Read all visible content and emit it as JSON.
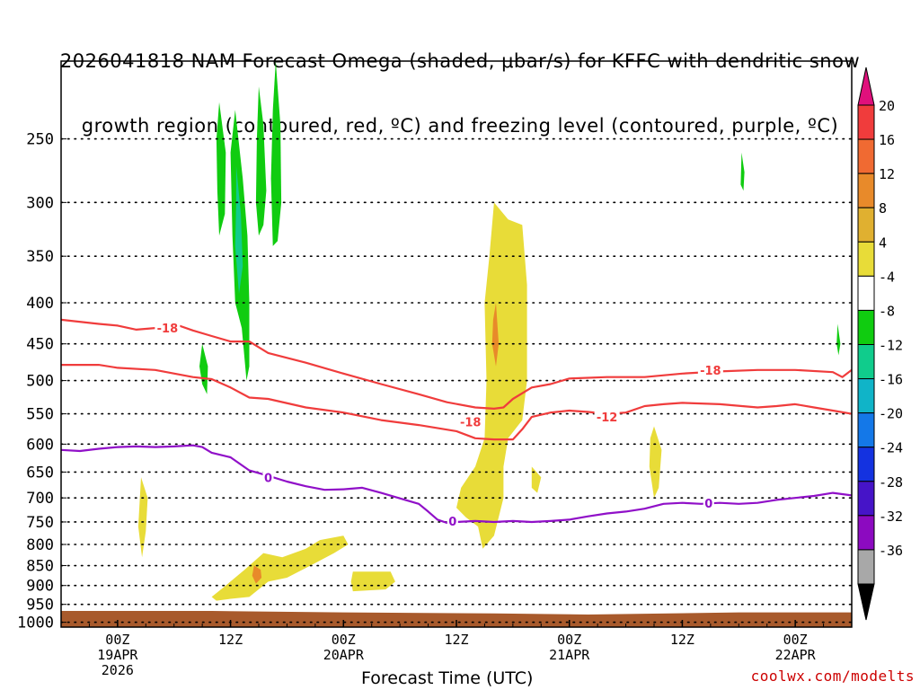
{
  "title": {
    "line1": "2026041818 NAM Forecast Omega (shaded, μbar/s) for KFFC with dendritic snow",
    "line2": "growth region (contoured, red, ºC) and freezing level (contoured, purple, ºC)"
  },
  "footer": "coolwx.com/modelts",
  "chart_data": {
    "type": "heatmap",
    "title": "2026041818 NAM Forecast Omega (shaded, μbar/s) for KFFC with dendritic snow growth region (contoured, red, ºC) and freezing level (contoured, purple, ºC)",
    "xlabel": "Forecast Time (UTC)",
    "ylabel": "",
    "x_ticks": [
      {
        "h": 0,
        "lines": [
          "00Z",
          "19APR",
          "2026"
        ]
      },
      {
        "h": 12,
        "lines": [
          "12Z"
        ]
      },
      {
        "h": 24,
        "lines": [
          "00Z",
          "20APR"
        ]
      },
      {
        "h": 36,
        "lines": [
          "12Z"
        ]
      },
      {
        "h": 48,
        "lines": [
          "00Z",
          "21APR"
        ]
      },
      {
        "h": 60,
        "lines": [
          "12Z"
        ]
      },
      {
        "h": 72,
        "lines": [
          "00Z",
          "22APR"
        ]
      }
    ],
    "xlim_hours": [
      -6,
      78
    ],
    "ylim_hpa": [
      1000,
      200
    ],
    "y_ticks": [
      250,
      300,
      350,
      400,
      450,
      500,
      550,
      600,
      650,
      700,
      750,
      800,
      850,
      900,
      950,
      1000
    ],
    "grid": true,
    "colorbar": {
      "labels": [
        20,
        16,
        12,
        8,
        4,
        -4,
        -8,
        -12,
        -16,
        -20,
        -24,
        -28,
        -32,
        -36
      ],
      "colors": [
        "#f03c3c",
        "#f06a32",
        "#e88a2a",
        "#e0b030",
        "#e8dc38",
        "#ffffff",
        "#10cc10",
        "#10cc8c",
        "#10b4c8",
        "#1478e8",
        "#1432e0",
        "#4614c8",
        "#8c0ac0",
        "#a8a8a8"
      ],
      "top_arrow_color": "#e0107c",
      "bottom_arrow_color": "#000000"
    },
    "shading": [
      {
        "color": "#e8dc38",
        "points": [
          [
            2.5,
            660
          ],
          [
            3.2,
            700
          ],
          [
            3.0,
            770
          ],
          [
            2.6,
            830
          ],
          [
            2.2,
            760
          ],
          [
            2.4,
            690
          ]
        ]
      },
      {
        "color": "#e8dc38",
        "points": [
          [
            10.0,
            930
          ],
          [
            11.5,
            900
          ],
          [
            13.5,
            860
          ],
          [
            15.5,
            820
          ],
          [
            17.5,
            830
          ],
          [
            20.0,
            810
          ],
          [
            21.5,
            790
          ],
          [
            24.0,
            780
          ],
          [
            24.5,
            800
          ],
          [
            23.0,
            820
          ],
          [
            20.5,
            850
          ],
          [
            18.0,
            880
          ],
          [
            16.0,
            890
          ],
          [
            14.0,
            930
          ],
          [
            12.0,
            935
          ],
          [
            10.5,
            940
          ]
        ]
      },
      {
        "color": "#e88a2a",
        "points": [
          [
            14.5,
            850
          ],
          [
            15.2,
            860
          ],
          [
            15.3,
            880
          ],
          [
            14.7,
            895
          ],
          [
            14.3,
            875
          ]
        ]
      },
      {
        "color": "#e8dc38",
        "points": [
          [
            25.0,
            865
          ],
          [
            29.0,
            865
          ],
          [
            29.5,
            890
          ],
          [
            28.5,
            910
          ],
          [
            25.0,
            915
          ],
          [
            24.8,
            890
          ]
        ]
      },
      {
        "color": "#e8dc38",
        "points": [
          [
            40.0,
            300
          ],
          [
            41.5,
            315
          ],
          [
            43.0,
            320
          ],
          [
            43.5,
            380
          ],
          [
            43.5,
            500
          ],
          [
            43.0,
            560
          ],
          [
            41.5,
            590
          ],
          [
            41.0,
            640
          ],
          [
            41.0,
            700
          ],
          [
            40.0,
            780
          ],
          [
            38.8,
            810
          ],
          [
            38.3,
            760
          ],
          [
            37.0,
            740
          ],
          [
            36.0,
            720
          ],
          [
            36.5,
            680
          ],
          [
            38.0,
            640
          ],
          [
            39.0,
            590
          ],
          [
            39.2,
            500
          ],
          [
            39.0,
            400
          ],
          [
            39.5,
            350
          ]
        ]
      },
      {
        "color": "#e88a2a",
        "points": [
          [
            40.2,
            400
          ],
          [
            40.5,
            450
          ],
          [
            40.2,
            480
          ],
          [
            39.8,
            450
          ],
          [
            39.9,
            420
          ]
        ]
      },
      {
        "color": "#e8dc38",
        "points": [
          [
            44.0,
            640
          ],
          [
            45.0,
            660
          ],
          [
            44.6,
            690
          ],
          [
            44.0,
            680
          ]
        ]
      },
      {
        "color": "#e8dc38",
        "points": [
          [
            57.0,
            570
          ],
          [
            57.8,
            610
          ],
          [
            57.5,
            680
          ],
          [
            57.0,
            700
          ],
          [
            56.5,
            640
          ],
          [
            56.6,
            590
          ]
        ]
      },
      {
        "color": "#10cc10",
        "points": [
          [
            9.0,
            450
          ],
          [
            9.6,
            480
          ],
          [
            9.5,
            520
          ],
          [
            9.0,
            505
          ],
          [
            8.7,
            480
          ]
        ]
      },
      {
        "color": "#10cc10",
        "points": [
          [
            10.8,
            225
          ],
          [
            11.5,
            260
          ],
          [
            11.4,
            310
          ],
          [
            10.8,
            330
          ],
          [
            10.6,
            290
          ],
          [
            10.5,
            250
          ]
        ]
      },
      {
        "color": "#10cc10",
        "points": [
          [
            12.5,
            230
          ],
          [
            13.3,
            280
          ],
          [
            13.8,
            330
          ],
          [
            14.0,
            400
          ],
          [
            14.0,
            480
          ],
          [
            13.7,
            500
          ],
          [
            13.2,
            430
          ],
          [
            12.5,
            400
          ],
          [
            12.2,
            330
          ],
          [
            12.0,
            260
          ]
        ]
      },
      {
        "color": "#10cc8c",
        "points": [
          [
            12.6,
            270
          ],
          [
            13.1,
            310
          ],
          [
            13.3,
            360
          ],
          [
            12.9,
            390
          ],
          [
            12.5,
            340
          ],
          [
            12.6,
            300
          ]
        ]
      },
      {
        "color": "#10cc10",
        "points": [
          [
            15.0,
            215
          ],
          [
            15.5,
            240
          ],
          [
            15.8,
            290
          ],
          [
            15.5,
            320
          ],
          [
            15.0,
            330
          ],
          [
            14.7,
            300
          ],
          [
            14.8,
            250
          ]
        ]
      },
      {
        "color": "#10cc10",
        "points": [
          [
            16.8,
            200
          ],
          [
            17.3,
            240
          ],
          [
            17.4,
            300
          ],
          [
            17.0,
            335
          ],
          [
            16.5,
            340
          ],
          [
            16.3,
            280
          ],
          [
            16.5,
            230
          ]
        ]
      },
      {
        "color": "#10cc10",
        "points": [
          [
            66.3,
            260
          ],
          [
            66.6,
            275
          ],
          [
            66.5,
            290
          ],
          [
            66.2,
            285
          ]
        ]
      },
      {
        "color": "#10cc10",
        "points": [
          [
            76.5,
            425
          ],
          [
            76.8,
            450
          ],
          [
            76.6,
            465
          ],
          [
            76.4,
            450
          ]
        ]
      }
    ],
    "contours": [
      {
        "label": "-18",
        "color": "#f03c3c",
        "label_at": [
          5.3,
          430
        ],
        "points": [
          [
            -6,
            420
          ],
          [
            -2,
            425
          ],
          [
            0,
            427
          ],
          [
            2,
            432
          ],
          [
            4,
            430
          ],
          [
            6,
            425
          ],
          [
            8,
            433
          ],
          [
            10,
            440
          ],
          [
            12,
            447
          ],
          [
            14,
            447
          ],
          [
            16,
            462
          ],
          [
            20,
            475
          ],
          [
            24,
            490
          ],
          [
            28,
            505
          ],
          [
            32,
            520
          ],
          [
            35,
            532
          ],
          [
            38,
            540
          ],
          [
            40,
            542
          ],
          [
            41,
            540
          ],
          [
            42,
            527
          ],
          [
            44,
            510
          ],
          [
            46,
            505
          ],
          [
            48,
            497
          ],
          [
            52,
            495
          ],
          [
            56,
            495
          ],
          [
            60,
            490
          ],
          [
            64,
            487
          ],
          [
            68,
            485
          ],
          [
            72,
            485
          ],
          [
            76,
            488
          ],
          [
            77,
            495
          ],
          [
            78,
            485
          ]
        ]
      },
      {
        "label": "-12",
        "color": "#f03c3c",
        "label_at": [
          52.0,
          555
        ],
        "points": [
          [
            -6,
            478
          ],
          [
            -2,
            478
          ],
          [
            0,
            482
          ],
          [
            4,
            485
          ],
          [
            8,
            495
          ],
          [
            10,
            498
          ],
          [
            12,
            510
          ],
          [
            14,
            525
          ],
          [
            16,
            527
          ],
          [
            20,
            540
          ],
          [
            24,
            548
          ],
          [
            28,
            560
          ],
          [
            32,
            568
          ],
          [
            36,
            578
          ],
          [
            38,
            590
          ],
          [
            40,
            592
          ],
          [
            42,
            592
          ],
          [
            43,
            575
          ],
          [
            44,
            555
          ],
          [
            46,
            548
          ],
          [
            48,
            545
          ],
          [
            50,
            547
          ],
          [
            52,
            550
          ],
          [
            54,
            548
          ],
          [
            56,
            538
          ],
          [
            58,
            535
          ],
          [
            60,
            533
          ],
          [
            64,
            535
          ],
          [
            68,
            540
          ],
          [
            70,
            538
          ],
          [
            72,
            535
          ],
          [
            74,
            540
          ],
          [
            76,
            545
          ],
          [
            78,
            550
          ]
        ]
      },
      {
        "label": "0",
        "color": "#9010c8",
        "label_at": [
          16.0,
          660
        ],
        "points": [
          [
            -6,
            610
          ],
          [
            -4,
            612
          ],
          [
            -2,
            608
          ],
          [
            0,
            605
          ],
          [
            2,
            604
          ],
          [
            4,
            605
          ],
          [
            6,
            604
          ],
          [
            8,
            602
          ],
          [
            9,
            605
          ],
          [
            10,
            615
          ],
          [
            12,
            623
          ],
          [
            14,
            647
          ],
          [
            16,
            657
          ],
          [
            18,
            668
          ],
          [
            20,
            677
          ],
          [
            22,
            684
          ],
          [
            24,
            683
          ],
          [
            26,
            680
          ],
          [
            28,
            690
          ],
          [
            30,
            701
          ],
          [
            32,
            712
          ],
          [
            33,
            728
          ],
          [
            34,
            745
          ],
          [
            35,
            752
          ],
          [
            36,
            750
          ],
          [
            38,
            748
          ],
          [
            40,
            750
          ],
          [
            42,
            748
          ],
          [
            44,
            750
          ],
          [
            46,
            748
          ],
          [
            48,
            745
          ],
          [
            50,
            738
          ],
          [
            52,
            732
          ],
          [
            54,
            728
          ],
          [
            56,
            722
          ],
          [
            58,
            712
          ],
          [
            60,
            710
          ],
          [
            62,
            712
          ],
          [
            64,
            710
          ],
          [
            66,
            712
          ],
          [
            68,
            710
          ],
          [
            70,
            704
          ],
          [
            72,
            700
          ],
          [
            74,
            696
          ],
          [
            76,
            690
          ],
          [
            78,
            695
          ]
        ]
      }
    ],
    "extra_labels": [
      {
        "text": "-18",
        "color": "#f03c3c",
        "at": [
          37.5,
          563
        ]
      },
      {
        "text": "-18",
        "color": "#f03c3c",
        "at": [
          63.0,
          485
        ]
      },
      {
        "text": "0",
        "color": "#9010c8",
        "at": [
          35.6,
          748
        ]
      },
      {
        "text": "0",
        "color": "#9010c8",
        "at": [
          62.8,
          711
        ]
      }
    ],
    "terrain": {
      "color": "#a85a2c",
      "points": [
        [
          -6,
          968
        ],
        [
          10,
          968
        ],
        [
          24,
          972
        ],
        [
          40,
          975
        ],
        [
          50,
          978
        ],
        [
          66,
          972
        ],
        [
          78,
          972
        ]
      ]
    }
  }
}
